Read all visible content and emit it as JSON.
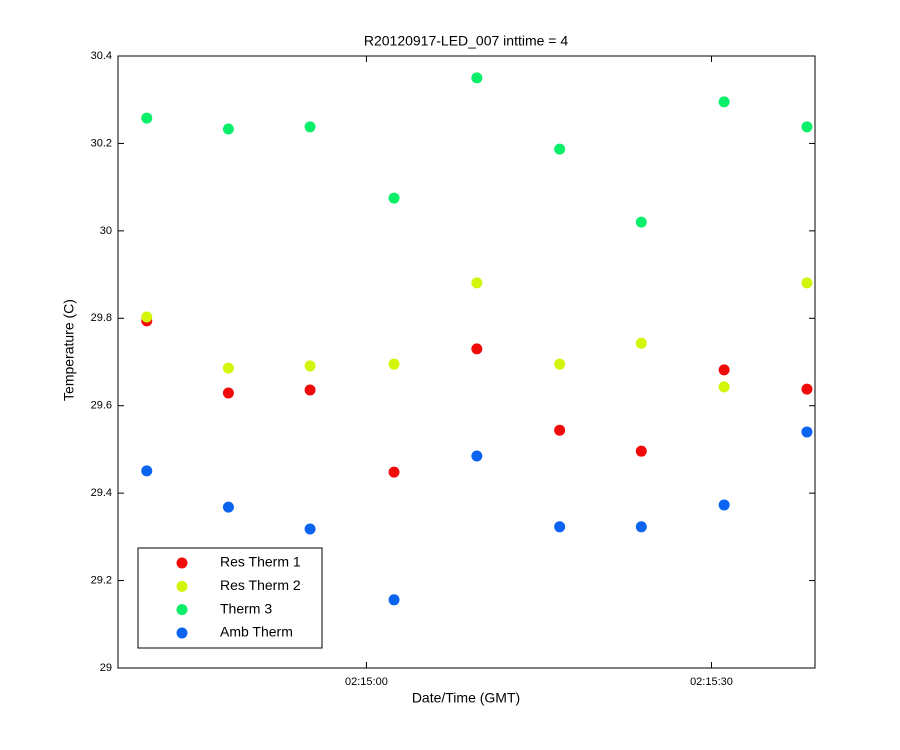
{
  "chart_data": {
    "type": "scatter",
    "title": "R20120917-LED_007 inttime = 4",
    "xlabel": "Date/Time (GMT)",
    "ylabel": "Temperature (C)",
    "x": [
      8080.9,
      8088.0,
      8095.1,
      8102.4,
      8109.6,
      8116.8,
      8123.9,
      8131.1,
      8138.3
    ],
    "series": [
      {
        "name": "Res Therm 1",
        "color": "#f00a0a",
        "values": [
          29.794,
          29.629,
          29.636,
          29.448,
          29.73,
          29.544,
          29.496,
          29.682,
          29.638
        ]
      },
      {
        "name": "Res Therm 2",
        "color": "#d2f50a",
        "values": [
          29.803,
          29.686,
          29.691,
          29.695,
          29.881,
          29.695,
          29.743,
          29.643,
          29.881
        ]
      },
      {
        "name": "Therm 3",
        "color": "#0aef6a",
        "values": [
          30.258,
          30.233,
          30.238,
          30.075,
          30.35,
          30.187,
          30.02,
          30.295,
          30.238
        ]
      },
      {
        "name": "Amb Therm",
        "color": "#0a64f0",
        "values": [
          29.451,
          29.368,
          29.318,
          29.156,
          29.485,
          29.323,
          29.323,
          29.373,
          29.54
        ]
      }
    ],
    "xlim": [
      8078.4,
      8139.0
    ],
    "xticks": [
      {
        "value": 8100,
        "label": "02:15:00"
      },
      {
        "value": 8130,
        "label": "02:15:30"
      }
    ],
    "ylim": [
      29,
      30.4
    ],
    "yticks": [
      29,
      29.2,
      29.4,
      29.6,
      29.8,
      30,
      30.2,
      30.4
    ],
    "grid": false,
    "legend": "lower left"
  }
}
